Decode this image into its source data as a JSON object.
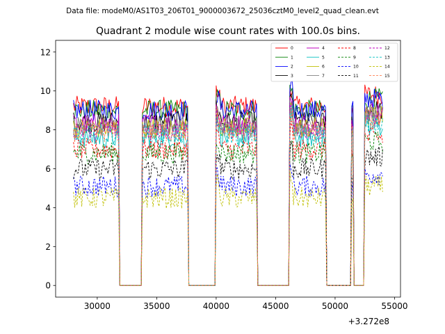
{
  "chart_data": {
    "type": "line",
    "suptitle": "Data file: modeM0/AS1T03_206T01_9000003672_25036cztM0_level2_quad_clean.evt",
    "title": "Quadrant 2 module wise count rates with 100.0s bins.",
    "xlabel": "",
    "ylabel": "",
    "x_offset_label": "+3.272e8",
    "xlim": [
      26500,
      55500
    ],
    "ylim": [
      -0.6,
      12.6
    ],
    "xticks": [
      30000,
      35000,
      40000,
      45000,
      50000,
      55000
    ],
    "yticks": [
      0,
      2,
      4,
      6,
      8,
      10,
      12
    ],
    "xtick_labels": [
      "30000",
      "35000",
      "40000",
      "45000",
      "50000",
      "55000"
    ],
    "ytick_labels": [
      "0",
      "2",
      "4",
      "6",
      "8",
      "10",
      "12"
    ],
    "legend_location": "upper right",
    "legend_ncol": 4,
    "segments": [
      {
        "start": 28000,
        "end": 31800
      },
      {
        "start": 33800,
        "end": 37600
      },
      {
        "start": 40000,
        "end": 43400
      },
      {
        "start": 46200,
        "end": 49200
      },
      {
        "start": 51400,
        "end": 51500
      },
      {
        "start": 52500,
        "end": 54000
      }
    ],
    "bin_width": 100,
    "series": [
      {
        "name": "0",
        "color": "#ff0000",
        "dash": "solid",
        "level": 9.2
      },
      {
        "name": "1",
        "color": "#008000",
        "dash": "solid",
        "level": 9.0
      },
      {
        "name": "2",
        "color": "#0000ff",
        "dash": "solid",
        "level": 9.0
      },
      {
        "name": "3",
        "color": "#000000",
        "dash": "solid",
        "level": 8.4
      },
      {
        "name": "4",
        "color": "#bf00bf",
        "dash": "solid",
        "level": 8.3
      },
      {
        "name": "5",
        "color": "#00bfbf",
        "dash": "solid",
        "level": 7.6
      },
      {
        "name": "6",
        "color": "#bfbf00",
        "dash": "solid",
        "level": 8.1
      },
      {
        "name": "7",
        "color": "#808080",
        "dash": "solid",
        "level": 8.2
      },
      {
        "name": "8",
        "color": "#ff0000",
        "dash": "dashed",
        "level": 7.0
      },
      {
        "name": "9",
        "color": "#008000",
        "dash": "dashed",
        "level": 6.8
      },
      {
        "name": "10",
        "color": "#0000ff",
        "dash": "dashed",
        "level": 5.1
      },
      {
        "name": "11",
        "color": "#000000",
        "dash": "dashed",
        "level": 6.0
      },
      {
        "name": "12",
        "color": "#bf00bf",
        "dash": "dashed",
        "level": 8.0
      },
      {
        "name": "13",
        "color": "#00bfbf",
        "dash": "dashed",
        "level": 7.8
      },
      {
        "name": "14",
        "color": "#bfbf00",
        "dash": "dashed",
        "level": 4.5
      },
      {
        "name": "15",
        "color": "#ff7f50",
        "dash": "dashed",
        "level": 7.9
      }
    ]
  }
}
